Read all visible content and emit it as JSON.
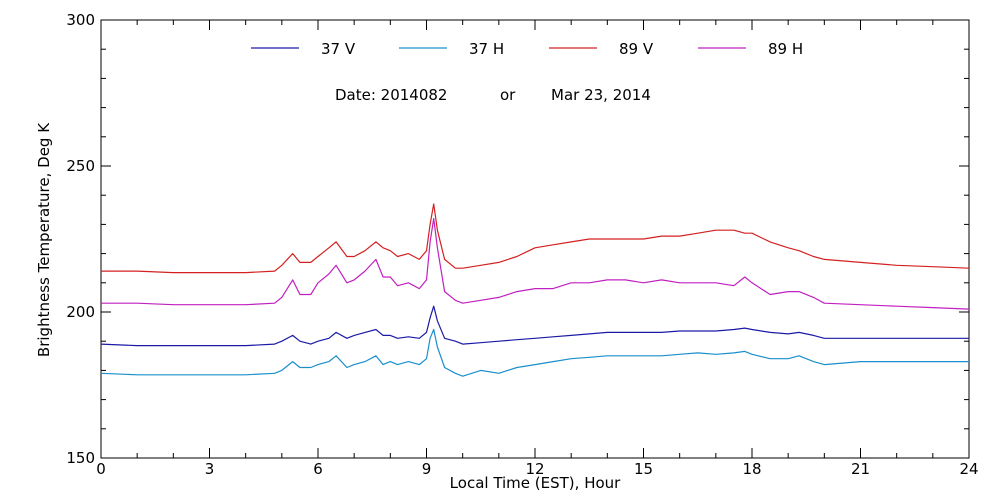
{
  "chart_data": {
    "type": "line",
    "xlabel": "Local Time (EST), Hour",
    "ylabel": "Brightness Temperature, Deg K",
    "xlim": [
      0,
      24
    ],
    "ylim": [
      150,
      300
    ],
    "xticks": [
      0,
      3,
      6,
      9,
      12,
      15,
      18,
      21,
      24
    ],
    "yticks": [
      150,
      200,
      250,
      300
    ],
    "xtick_labels": [
      "0",
      "3",
      "6",
      "9",
      "12",
      "15",
      "18",
      "21",
      "24"
    ],
    "ytick_labels": [
      "150",
      "200",
      "250",
      "300"
    ],
    "grid": false,
    "legend_position": "top-center",
    "annotation": {
      "date_code": "Date: 2014082",
      "or_text": "or",
      "date_text": "Mar 23, 2014"
    },
    "series": [
      {
        "name": "37 V",
        "color": "#1a1aa6",
        "x": [
          0,
          1,
          2,
          3,
          4,
          4.8,
          5,
          5.3,
          5.5,
          5.8,
          6,
          6.3,
          6.5,
          6.8,
          7,
          7.3,
          7.6,
          7.8,
          8,
          8.2,
          8.5,
          8.8,
          9,
          9.1,
          9.2,
          9.3,
          9.5,
          9.8,
          10,
          10.5,
          11,
          11.5,
          12,
          12.5,
          13,
          13.5,
          14,
          14.5,
          15,
          15.5,
          16,
          16.5,
          17,
          17.5,
          17.8,
          18,
          18.5,
          19,
          19.3,
          19.7,
          20,
          21,
          22,
          23,
          24
        ],
        "y": [
          189,
          188.5,
          188.5,
          188.5,
          188.5,
          189,
          190,
          192,
          190,
          189,
          190,
          191,
          193,
          191,
          192,
          193,
          194,
          192,
          192,
          191,
          191.5,
          191,
          193,
          198,
          202,
          197,
          191,
          190,
          189,
          189.5,
          190,
          190.5,
          191,
          191.5,
          192,
          192.5,
          193,
          193,
          193,
          193,
          193.5,
          193.5,
          193.5,
          194,
          194.5,
          194,
          193,
          192.5,
          193,
          192,
          191,
          191,
          191,
          191,
          191
        ]
      },
      {
        "name": "37 H",
        "color": "#1a8fcc",
        "x": [
          0,
          1,
          2,
          3,
          4,
          4.8,
          5,
          5.3,
          5.5,
          5.8,
          6,
          6.3,
          6.5,
          6.8,
          7,
          7.3,
          7.6,
          7.8,
          8,
          8.2,
          8.5,
          8.8,
          9,
          9.1,
          9.2,
          9.3,
          9.5,
          9.8,
          10,
          10.5,
          11,
          11.5,
          12,
          12.5,
          13,
          13.5,
          14,
          14.5,
          15,
          15.5,
          16,
          16.5,
          17,
          17.5,
          17.8,
          18,
          18.5,
          19,
          19.3,
          19.7,
          20,
          21,
          22,
          23,
          24
        ],
        "y": [
          179,
          178.5,
          178.5,
          178.5,
          178.5,
          179,
          180,
          183,
          181,
          181,
          182,
          183,
          185,
          181,
          182,
          183,
          185,
          182,
          183,
          182,
          183,
          182,
          184,
          191,
          194,
          188,
          181,
          179,
          178,
          180,
          179,
          181,
          182,
          183,
          184,
          184.5,
          185,
          185,
          185,
          185,
          185.5,
          186,
          185.5,
          186,
          186.5,
          185.5,
          184,
          184,
          185,
          183,
          182,
          183,
          183,
          183,
          183
        ]
      },
      {
        "name": "89 V",
        "color": "#d42020",
        "x": [
          0,
          1,
          2,
          3,
          4,
          4.8,
          5,
          5.3,
          5.5,
          5.8,
          6,
          6.3,
          6.5,
          6.8,
          7,
          7.3,
          7.6,
          7.8,
          8,
          8.2,
          8.5,
          8.8,
          9,
          9.1,
          9.2,
          9.3,
          9.5,
          9.8,
          10,
          10.5,
          11,
          11.5,
          12,
          12.5,
          13,
          13.5,
          14,
          14.5,
          15,
          15.5,
          16,
          16.5,
          17,
          17.5,
          17.8,
          18,
          18.5,
          19,
          19.3,
          19.7,
          20,
          21,
          22,
          23,
          24
        ],
        "y": [
          214,
          214,
          213.5,
          213.5,
          213.5,
          214,
          216,
          220,
          217,
          217,
          219,
          222,
          224,
          219,
          219,
          221,
          224,
          222,
          221,
          219,
          220,
          218,
          221,
          230,
          237,
          228,
          218,
          215,
          215,
          216,
          217,
          219,
          222,
          223,
          224,
          225,
          225,
          225,
          225,
          226,
          226,
          227,
          228,
          228,
          227,
          227,
          224,
          222,
          221,
          219,
          218,
          217,
          216,
          215.5,
          215
        ]
      },
      {
        "name": "89 H",
        "color": "#c020c0",
        "x": [
          0,
          1,
          2,
          3,
          4,
          4.8,
          5,
          5.3,
          5.5,
          5.8,
          6,
          6.3,
          6.5,
          6.8,
          7,
          7.3,
          7.6,
          7.8,
          8,
          8.2,
          8.5,
          8.8,
          9,
          9.1,
          9.2,
          9.3,
          9.5,
          9.8,
          10,
          10.5,
          11,
          11.5,
          12,
          12.5,
          13,
          13.5,
          14,
          14.5,
          15,
          15.5,
          16,
          16.5,
          17,
          17.5,
          17.8,
          18,
          18.5,
          19,
          19.3,
          19.7,
          20,
          21,
          22,
          23,
          24
        ],
        "y": [
          203,
          203,
          202.5,
          202.5,
          202.5,
          203,
          205,
          211,
          206,
          206,
          210,
          213,
          216,
          210,
          211,
          214,
          218,
          212,
          212,
          209,
          210,
          208,
          211,
          224,
          232,
          222,
          207,
          204,
          203,
          204,
          205,
          207,
          208,
          208,
          210,
          210,
          211,
          211,
          210,
          211,
          210,
          210,
          210,
          209,
          212,
          210,
          206,
          207,
          207,
          205,
          203,
          202.5,
          202,
          201.5,
          201
        ]
      }
    ]
  }
}
